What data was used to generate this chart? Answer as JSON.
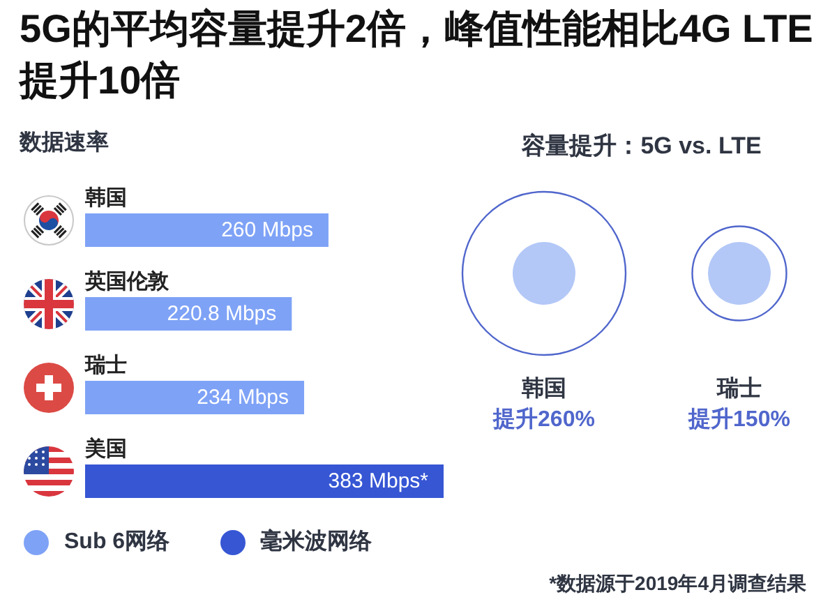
{
  "chart_data": [
    {
      "type": "bar",
      "title": "5G的平均容量提升2倍，峰值性能相比4G LTE提升10倍",
      "subtitle": "数据速率",
      "orientation": "horizontal",
      "stacked": true,
      "categories": [
        "韩国",
        "英国伦敦",
        "瑞士",
        "美国"
      ],
      "series": [
        {
          "name": "Sub 6网络",
          "color": "#7ea2f6",
          "values": [
            260,
            220.8,
            234,
            null
          ],
          "value_labels": [
            "260 Mbps",
            "220.8 Mbps",
            "234 Mbps",
            null
          ]
        },
        {
          "name": "毫米波网络",
          "color": "#3656d4",
          "values": [
            null,
            null,
            null,
            383
          ],
          "value_labels": [
            null,
            null,
            null,
            "383 Mbps*"
          ]
        }
      ],
      "legend": "bottom left",
      "tick_labels": "y"
    },
    {
      "type": "other",
      "title": "容量提升：5G vs. LTE",
      "categories": [
        "韩国",
        "瑞士"
      ],
      "values": [
        260,
        150
      ],
      "value_labels": [
        "提升260%",
        "提升150%"
      ],
      "color": "#5066cc",
      "annotations": [
        "*数据源于2019年4月调查结果"
      ]
    }
  ]
}
